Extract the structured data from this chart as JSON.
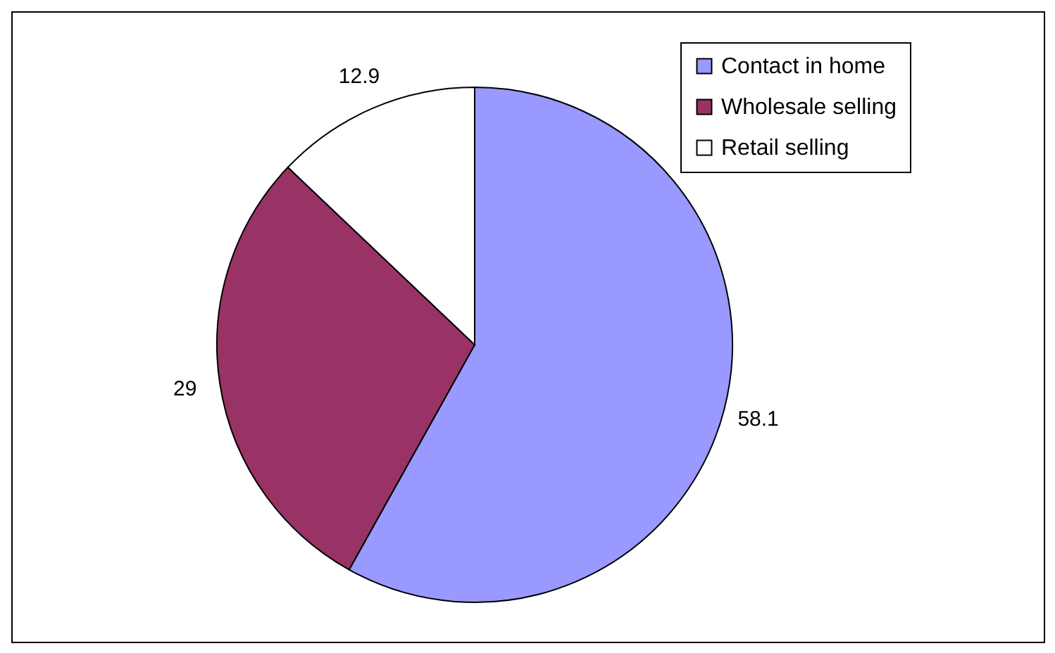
{
  "chart_data": {
    "type": "pie",
    "categories": [
      "Contact in home",
      "Wholesale selling",
      "Retail selling"
    ],
    "values": [
      58.1,
      29,
      12.9
    ],
    "colors": [
      "#9999ff",
      "#993366",
      "#ffffff"
    ],
    "data_labels": true,
    "legend": "top right"
  }
}
